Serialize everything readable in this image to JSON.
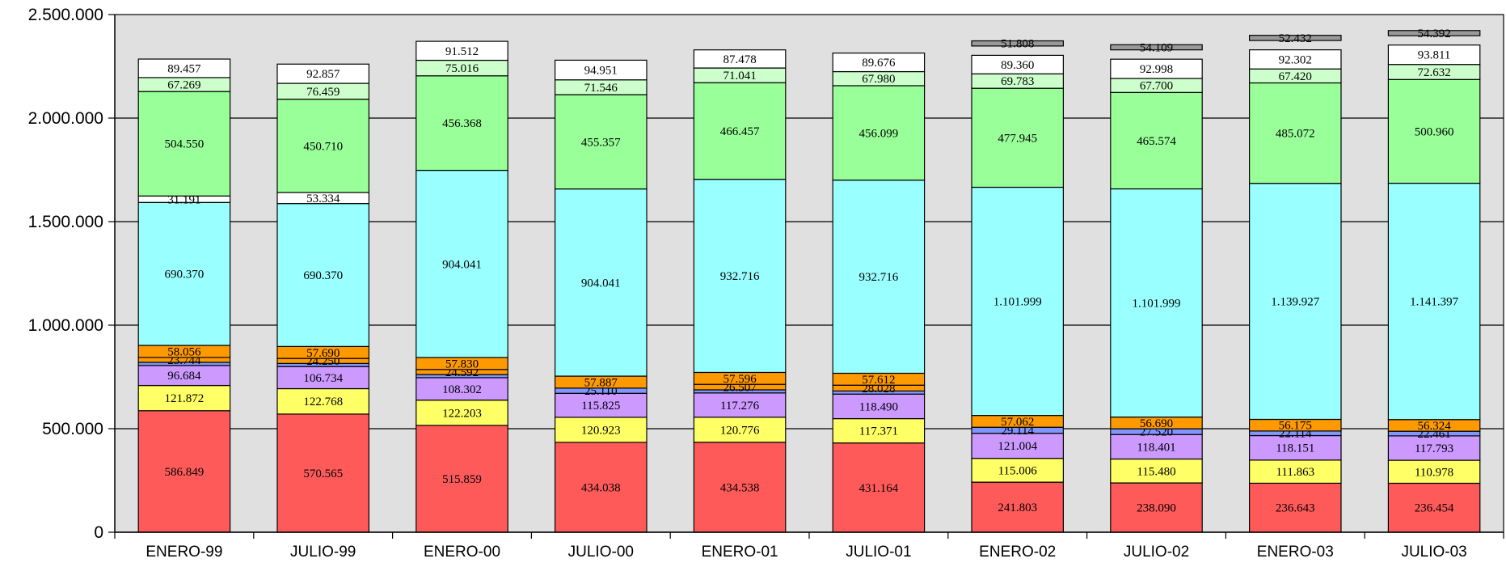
{
  "chart_data": {
    "type": "bar",
    "stacked": true,
    "categories": [
      "ENERO-99",
      "JULIO-99",
      "ENERO-00",
      "JULIO-00",
      "ENERO-01",
      "JULIO-01",
      "ENERO-02",
      "JULIO-02",
      "ENERO-03",
      "JULIO-03"
    ],
    "ylim": [
      0,
      2500000
    ],
    "yticks": [
      0,
      500000,
      1000000,
      1500000,
      2000000,
      2500000
    ],
    "ytick_labels": [
      "0",
      "500.000",
      "1.000.000",
      "1.500.000",
      "2.000.000",
      "2.500.000"
    ],
    "grid": true,
    "plot_background": "#e0e0e0",
    "series": [
      {
        "color": "#ff5a5a",
        "values": [
          586849,
          570565,
          515859,
          434038,
          434538,
          431164,
          241803,
          238090,
          236643,
          236454
        ],
        "labels": [
          "586.849",
          "570.565",
          "515.859",
          "434.038",
          "434.538",
          "431.164",
          "241.803",
          "238.090",
          "236.643",
          "236.454"
        ]
      },
      {
        "color": "#ffff66",
        "values": [
          121872,
          122768,
          122203,
          120923,
          120776,
          117371,
          115006,
          115480,
          111863,
          110978
        ],
        "labels": [
          "121.872",
          "122.768",
          "122.203",
          "120.923",
          "120.776",
          "117.371",
          "115.006",
          "115.480",
          "111.863",
          "110.978"
        ]
      },
      {
        "color": "#cc99ff",
        "values": [
          96684,
          106734,
          108302,
          115825,
          117276,
          118490,
          121004,
          118401,
          118151,
          117793
        ],
        "labels": [
          "96.684",
          "106.734",
          "108.302",
          "115.825",
          "117.276",
          "118.490",
          "121.004",
          "118.401",
          "118.151",
          "117.793"
        ]
      },
      {
        "color": "#8096ff",
        "values": [
          15000,
          15000,
          15000,
          25110,
          15000,
          15000,
          29114,
          27520,
          22114,
          22461
        ],
        "labels": [
          "",
          "",
          "",
          "25.110",
          "",
          "",
          "29.114",
          "27.520",
          "22.114",
          "22.461"
        ]
      },
      {
        "color": "#ff9900",
        "values": [
          23744,
          24250,
          24592,
          57887,
          26507,
          28028,
          57062,
          56690,
          56175,
          56324
        ],
        "labels": [
          "23.744",
          "24.250",
          "24.592",
          "57.887",
          "26.507",
          "28.028",
          "57.062",
          "56.690",
          "56.175",
          "56.324"
        ]
      },
      {
        "color": "#ff9900",
        "values": [
          58056,
          57690,
          57830,
          0,
          57596,
          57612,
          0,
          0,
          0,
          0
        ],
        "labels": [
          "58.056",
          "57.690",
          "57.830",
          "",
          "57.596",
          "57.612",
          "",
          "",
          "",
          ""
        ]
      },
      {
        "color": "#99ffff",
        "values": [
          690370,
          690370,
          904041,
          904041,
          932716,
          932716,
          1101999,
          1101999,
          1139927,
          1141397
        ],
        "labels": [
          "690.370",
          "690.370",
          "904.041",
          "904.041",
          "932.716",
          "932.716",
          "1.101.999",
          "1.101.999",
          "1.139.927",
          "1.141.397"
        ]
      },
      {
        "color": "#ffffff",
        "values": [
          31191,
          53334,
          0,
          0,
          0,
          0,
          0,
          0,
          0,
          0
        ],
        "labels": [
          "31.191",
          "53.334",
          "",
          "",
          "",
          "",
          "",
          "",
          "",
          ""
        ]
      },
      {
        "color": "#99ff99",
        "values": [
          504550,
          450710,
          456368,
          455357,
          466457,
          456099,
          477945,
          465574,
          485072,
          500960
        ],
        "labels": [
          "504.550",
          "450.710",
          "456.368",
          "455.357",
          "466.457",
          "456.099",
          "477.945",
          "465.574",
          "485.072",
          "500.960"
        ]
      },
      {
        "color": "#ccffcc",
        "values": [
          67269,
          76459,
          75016,
          71546,
          71041,
          67980,
          69783,
          67700,
          67420,
          72632
        ],
        "labels": [
          "67.269",
          "76.459",
          "75.016",
          "71.546",
          "71.041",
          "67.980",
          "69.783",
          "67.700",
          "67.420",
          "72.632"
        ]
      },
      {
        "color": "#ffffff",
        "values": [
          89457,
          92857,
          91512,
          94951,
          87478,
          89676,
          89360,
          92998,
          92302,
          93811
        ],
        "labels": [
          "89.457",
          "92.857",
          "91.512",
          "94.951",
          "87.478",
          "89.676",
          "89.360",
          "92.998",
          "92.302",
          "93.811"
        ]
      },
      {
        "color": "#999999",
        "floating": true,
        "values": [
          0,
          0,
          0,
          0,
          0,
          0,
          51808,
          54109,
          52432,
          54392
        ],
        "labels": [
          "",
          "",
          "",
          "",
          "",
          "",
          "51.808",
          "54.109",
          "52.432",
          "54.392"
        ]
      }
    ]
  }
}
